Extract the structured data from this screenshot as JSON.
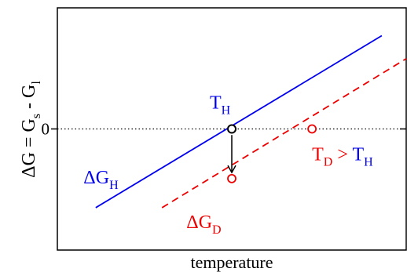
{
  "chart_data": {
    "type": "line",
    "title": "",
    "xlabel": "temperature",
    "ylabel": {
      "prefix": "ΔG = G",
      "sub1": "s",
      "mid": " - G",
      "sub2": "l"
    },
    "yticks": [
      {
        "value": 0,
        "label": "0"
      }
    ],
    "xlim": [
      0,
      100
    ],
    "ylim": [
      -1.0,
      1.0
    ],
    "zero_line": "dotted",
    "series": [
      {
        "name": "ΔG_H",
        "color": "#0000ee",
        "style": "solid",
        "points": [
          [
            11,
            -0.65
          ],
          [
            93,
            0.77
          ]
        ],
        "label": {
          "base": "ΔG",
          "sub": "H"
        }
      },
      {
        "name": "ΔG_D",
        "color": "#ee0000",
        "style": "dashed",
        "points": [
          [
            30,
            -0.65
          ],
          [
            100,
            0.58
          ]
        ],
        "label": {
          "base": "ΔG",
          "sub": "D"
        }
      }
    ],
    "markers": [
      {
        "name": "T_H",
        "x": 50,
        "y": 0,
        "color": "#000000"
      },
      {
        "name": "drop-point",
        "x": 50,
        "y": -0.41,
        "color": "#ee0000"
      },
      {
        "name": "T_D",
        "x": 73,
        "y": 0,
        "color": "#ee0000"
      }
    ],
    "arrow": {
      "from": [
        50,
        -0.05
      ],
      "to": [
        50,
        -0.36
      ],
      "color": "#000000"
    },
    "annotations": {
      "th": {
        "base": "T",
        "sub": "H",
        "color": "#0000ee"
      },
      "td": {
        "base1": "T",
        "sub1": "D",
        "op": " > ",
        "base2": "T",
        "sub2": "H",
        "color_left": "#ee0000",
        "color_right": "#0000ee"
      }
    }
  }
}
